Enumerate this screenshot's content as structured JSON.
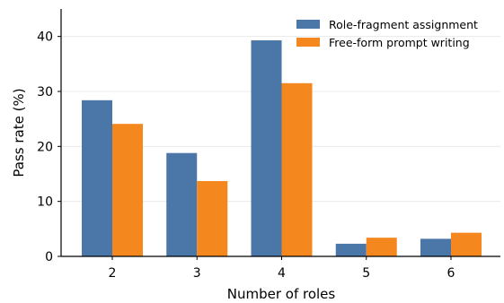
{
  "chart_data": {
    "type": "bar",
    "categories": [
      "2",
      "3",
      "4",
      "5",
      "6"
    ],
    "series": [
      {
        "name": "Role-fragment assignment",
        "color": "#4a76a8",
        "values": [
          28.4,
          18.8,
          39.3,
          2.3,
          3.2
        ]
      },
      {
        "name": "Free-form prompt writing",
        "color": "#f5871f",
        "values": [
          24.1,
          13.7,
          31.5,
          3.4,
          4.3
        ]
      }
    ],
    "title": "",
    "xlabel": "Number of roles",
    "ylabel": "Pass rate (%)",
    "ylim": [
      0,
      45
    ],
    "yticks": [
      "0",
      "10",
      "20",
      "30",
      "40"
    ],
    "grid": "horizontal",
    "legend_position": "top-right"
  }
}
